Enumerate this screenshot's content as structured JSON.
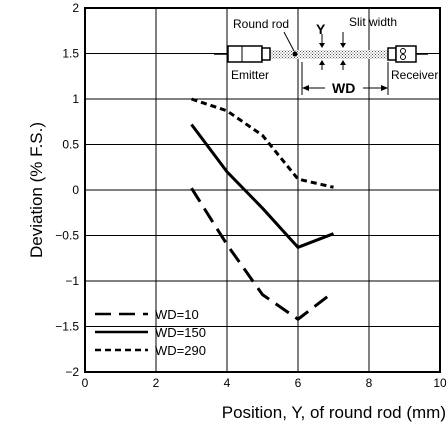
{
  "chart_data": {
    "type": "line",
    "xlabel": "Position, Y, of round rod (mm)",
    "ylabel": "Deviation (% F.S.)",
    "xlim": [
      0,
      10
    ],
    "ylim": [
      -2,
      2
    ],
    "x_ticks": [
      0,
      2,
      4,
      6,
      8,
      10
    ],
    "y_ticks": [
      2,
      1.5,
      1,
      0.5,
      0,
      -0.5,
      -1,
      -1.5,
      -2
    ],
    "x_tick_labels": [
      "0",
      "2",
      "4",
      "6",
      "8",
      "10"
    ],
    "y_tick_labels": [
      "2",
      "1.5",
      "1",
      "0.5",
      "0",
      "−0.5",
      "−1",
      "−1.5",
      "−2"
    ],
    "grid": true,
    "legend_position": "bottom-left",
    "series": [
      {
        "name": "WD=10",
        "dash": "long-dash",
        "x": [
          3,
          4,
          5,
          6,
          7
        ],
        "y": [
          0.02,
          -0.6,
          -1.15,
          -1.42,
          -1.12
        ]
      },
      {
        "name": "WD=150",
        "dash": "solid",
        "x": [
          3,
          4,
          5,
          6,
          7
        ],
        "y": [
          0.72,
          0.2,
          -0.2,
          -0.63,
          -0.48
        ]
      },
      {
        "name": "WD=290",
        "dash": "short-dash",
        "x": [
          3,
          4,
          5,
          6,
          7
        ],
        "y": [
          1.0,
          0.87,
          0.6,
          0.12,
          0.03
        ]
      }
    ],
    "inset": {
      "labels": {
        "round_rod": "Round rod",
        "y": "Y",
        "slit_width": "Slit width",
        "emitter": "Emitter",
        "wd": "WD",
        "receiver": "Receiver"
      }
    }
  }
}
